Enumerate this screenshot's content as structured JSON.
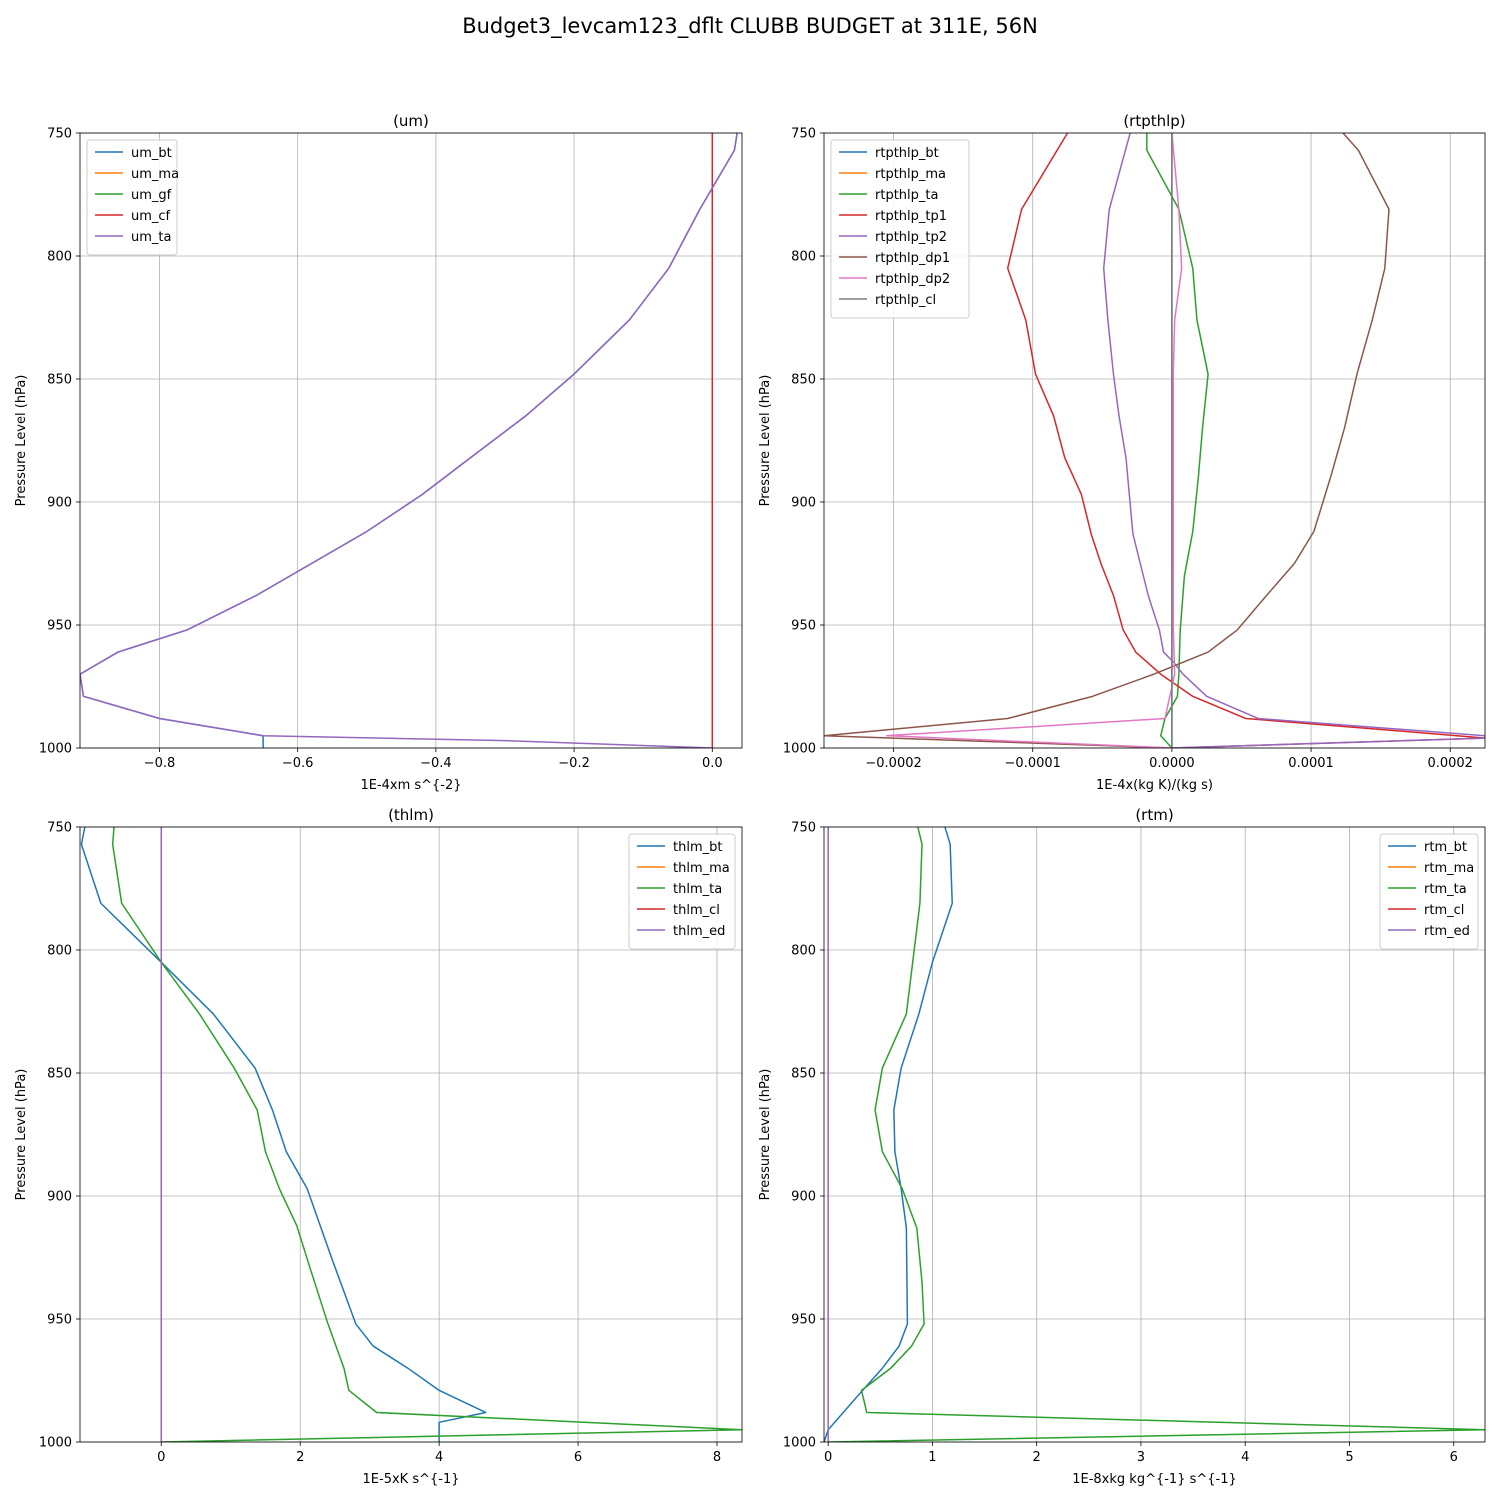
{
  "figure": {
    "title": "Budget3_levcam123_dflt CLUBB BUDGET at 311E, 56N"
  },
  "chart_data": [
    {
      "type": "line",
      "title": "(um)",
      "xlabel": "1E-4xm s^{-2}",
      "ylabel": "Pressure Level (hPa)",
      "xlim": [
        -0.915,
        0.043
      ],
      "ylim": [
        1000,
        750
      ],
      "xticks": [
        -0.8,
        -0.6,
        -0.4,
        -0.2,
        0.0
      ],
      "xtick_labels": [
        "−0.8",
        "−0.6",
        "−0.4",
        "−0.2",
        "0.0"
      ],
      "yticks": [
        750,
        800,
        850,
        900,
        950,
        1000
      ],
      "ytick_labels": [
        "750",
        "800",
        "850",
        "900",
        "950",
        "1000"
      ],
      "grid": true,
      "legend": "upper left",
      "series": [
        {
          "name": "um_bt",
          "color": "#1f77b4",
          "points": [
            [
              0.036,
              750
            ],
            [
              0.032,
              757
            ],
            [
              -0.018,
              781
            ],
            [
              -0.063,
              805
            ],
            [
              -0.12,
              826
            ],
            [
              -0.2,
              848
            ],
            [
              -0.27,
              865
            ],
            [
              -0.35,
              882
            ],
            [
              -0.42,
              897
            ],
            [
              -0.5,
              912
            ],
            [
              -0.58,
              925
            ],
            [
              -0.66,
              938
            ],
            [
              -0.76,
              952
            ],
            [
              -0.86,
              961
            ],
            [
              -0.915,
              970
            ],
            [
              -0.91,
              979
            ],
            [
              -0.8,
              988
            ],
            [
              -0.65,
              995
            ],
            [
              -0.65,
              1000
            ]
          ]
        },
        {
          "name": "um_ma",
          "color": "#ff7f0e",
          "points": []
        },
        {
          "name": "um_gf",
          "color": "#2ca02c",
          "points": []
        },
        {
          "name": "um_cf",
          "color": "#d62728",
          "points": [
            [
              0.0,
              750
            ],
            [
              0.0,
              1000
            ]
          ]
        },
        {
          "name": "um_ta",
          "color": "#9467bd",
          "points": [
            [
              0.036,
              750
            ],
            [
              0.032,
              757
            ],
            [
              -0.018,
              781
            ],
            [
              -0.063,
              805
            ],
            [
              -0.12,
              826
            ],
            [
              -0.2,
              848
            ],
            [
              -0.27,
              865
            ],
            [
              -0.35,
              882
            ],
            [
              -0.42,
              897
            ],
            [
              -0.5,
              912
            ],
            [
              -0.58,
              925
            ],
            [
              -0.66,
              938
            ],
            [
              -0.76,
              952
            ],
            [
              -0.86,
              961
            ],
            [
              -0.915,
              970
            ],
            [
              -0.91,
              979
            ],
            [
              -0.8,
              988
            ],
            [
              -0.65,
              995
            ],
            [
              -0.3,
              997
            ],
            [
              0.0,
              1000
            ]
          ]
        }
      ]
    },
    {
      "type": "line",
      "title": "(rtpthlp)",
      "xlabel": "1E-4x(kg K)/(kg s)",
      "ylabel": "Pressure Level (hPa)",
      "xlim": [
        -0.00025,
        0.000225
      ],
      "ylim": [
        1000,
        750
      ],
      "xticks": [
        -0.0002,
        -0.0001,
        0.0,
        0.0001,
        0.0002
      ],
      "xtick_labels": [
        "−0.0002",
        "−0.0001",
        "0.0000",
        "0.0001",
        "0.0002"
      ],
      "yticks": [
        750,
        800,
        850,
        900,
        950,
        1000
      ],
      "ytick_labels": [
        "750",
        "800",
        "850",
        "900",
        "950",
        "1000"
      ],
      "grid": true,
      "legend": "upper left",
      "series": [
        {
          "name": "rtpthlp_bt",
          "color": "#1f77b4",
          "points": [
            [
              0.0,
              750
            ],
            [
              0.0,
              1000
            ]
          ]
        },
        {
          "name": "rtpthlp_ma",
          "color": "#ff7f0e",
          "points": []
        },
        {
          "name": "rtpthlp_ta",
          "color": "#2ca02c",
          "points": [
            [
              -1.8e-05,
              750
            ],
            [
              -1.8e-05,
              757
            ],
            [
              5e-06,
              781
            ],
            [
              1.5e-05,
              805
            ],
            [
              1.8e-05,
              826
            ],
            [
              2.6e-05,
              848
            ],
            [
              2.2e-05,
              870
            ],
            [
              1.9e-05,
              890
            ],
            [
              1.5e-05,
              912
            ],
            [
              9e-06,
              930
            ],
            [
              6e-06,
              952
            ],
            [
              5e-06,
              970
            ],
            [
              4e-06,
              979
            ],
            [
              -5e-06,
              988
            ],
            [
              -8e-06,
              995
            ],
            [
              0.0,
              1000
            ]
          ]
        },
        {
          "name": "rtpthlp_tp1",
          "color": "#d62728",
          "points": [
            [
              -7.5e-05,
              750
            ],
            [
              -0.000108,
              781
            ],
            [
              -0.000118,
              805
            ],
            [
              -0.000105,
              826
            ],
            [
              -9.8e-05,
              848
            ],
            [
              -8.5e-05,
              865
            ],
            [
              -7.7e-05,
              882
            ],
            [
              -6.5e-05,
              897
            ],
            [
              -5.8e-05,
              913
            ],
            [
              -5.1e-05,
              925
            ],
            [
              -4.2e-05,
              938
            ],
            [
              -3.5e-05,
              952
            ],
            [
              -2.6e-05,
              961
            ],
            [
              -8e-06,
              970
            ],
            [
              1.5e-05,
              979
            ],
            [
              5.3e-05,
              988
            ],
            [
              0.000205,
              995
            ],
            [
              0.000225,
              996
            ],
            [
              0.0,
              1000
            ]
          ]
        },
        {
          "name": "rtpthlp_tp2",
          "color": "#9467bd",
          "points": [
            [
              -3e-05,
              750
            ],
            [
              -4.5e-05,
              781
            ],
            [
              -4.9e-05,
              805
            ],
            [
              -4.6e-05,
              826
            ],
            [
              -4.2e-05,
              848
            ],
            [
              -3.8e-05,
              865
            ],
            [
              -3.3e-05,
              882
            ],
            [
              -2.8e-05,
              913
            ],
            [
              -1.7e-05,
              938
            ],
            [
              -9e-06,
              952
            ],
            [
              -6e-06,
              961
            ],
            [
              1e-06,
              965
            ],
            [
              8e-06,
              970
            ],
            [
              2.5e-05,
              979
            ],
            [
              6.2e-05,
              988
            ],
            [
              0.000225,
              995
            ],
            [
              0.000225,
              996
            ],
            [
              0.0,
              1000
            ]
          ]
        },
        {
          "name": "rtpthlp_dp1",
          "color": "#8c564b",
          "points": [
            [
              0.000123,
              750
            ],
            [
              0.000134,
              757
            ],
            [
              0.000156,
              781
            ],
            [
              0.000153,
              805
            ],
            [
              0.000144,
              826
            ],
            [
              0.000133,
              848
            ],
            [
              0.000124,
              870
            ],
            [
              0.000114,
              890
            ],
            [
              0.000102,
              912
            ],
            [
              8.8e-05,
              925
            ],
            [
              6.8e-05,
              938
            ],
            [
              4.7e-05,
              952
            ],
            [
              2.6e-05,
              961
            ],
            [
              -1.3e-05,
              970
            ],
            [
              -5.7e-05,
              979
            ],
            [
              -0.000118,
              988
            ],
            [
              -0.00025,
              995
            ],
            [
              0.0,
              1000
            ]
          ]
        },
        {
          "name": "rtpthlp_dp2",
          "color": "#e377c2",
          "points": [
            [
              0.0,
              750
            ],
            [
              5e-06,
              781
            ],
            [
              7e-06,
              805
            ],
            [
              2e-06,
              826
            ],
            [
              1e-06,
              848
            ],
            [
              1e-06,
              900
            ],
            [
              1e-06,
              952
            ],
            [
              2e-06,
              970
            ],
            [
              -5e-06,
              988
            ],
            [
              -0.000205,
              995
            ],
            [
              0.0,
              1000
            ]
          ]
        },
        {
          "name": "rtpthlp_cl",
          "color": "#7f7f7f",
          "points": [
            [
              0.0,
              750
            ],
            [
              0.0,
              1000
            ]
          ]
        }
      ]
    },
    {
      "type": "line",
      "title": "(thlm)",
      "xlabel": "1E-5xK s^{-1}",
      "ylabel": "Pressure Level (hPa)",
      "xlim": [
        -1.17,
        8.36
      ],
      "ylim": [
        1000,
        750
      ],
      "xticks": [
        0,
        2,
        4,
        6,
        8
      ],
      "xtick_labels": [
        "0",
        "2",
        "4",
        "6",
        "8"
      ],
      "yticks": [
        750,
        800,
        850,
        900,
        950,
        1000
      ],
      "ytick_labels": [
        "750",
        "800",
        "850",
        "900",
        "950",
        "1000"
      ],
      "grid": true,
      "legend": "upper right",
      "series": [
        {
          "name": "thlm_bt",
          "color": "#1f77b4",
          "points": [
            [
              -1.1,
              750
            ],
            [
              -1.15,
              757
            ],
            [
              -0.87,
              781
            ],
            [
              0.0,
              805
            ],
            [
              0.75,
              826
            ],
            [
              1.35,
              848
            ],
            [
              1.6,
              865
            ],
            [
              1.8,
              882
            ],
            [
              2.1,
              897
            ],
            [
              2.45,
              925
            ],
            [
              2.8,
              952
            ],
            [
              3.05,
              961
            ],
            [
              3.55,
              970
            ],
            [
              4.0,
              979
            ],
            [
              4.67,
              988
            ],
            [
              4.0,
              992
            ],
            [
              4.0,
              1000
            ]
          ]
        },
        {
          "name": "thlm_ma",
          "color": "#ff7f0e",
          "points": []
        },
        {
          "name": "thlm_ta",
          "color": "#2ca02c",
          "points": [
            [
              -0.68,
              750
            ],
            [
              -0.7,
              757
            ],
            [
              -0.57,
              781
            ],
            [
              0.0,
              805
            ],
            [
              0.55,
              826
            ],
            [
              1.05,
              848
            ],
            [
              1.38,
              865
            ],
            [
              1.5,
              882
            ],
            [
              1.7,
              897
            ],
            [
              1.95,
              912
            ],
            [
              2.15,
              930
            ],
            [
              2.4,
              952
            ],
            [
              2.63,
              970
            ],
            [
              2.7,
              979
            ],
            [
              3.1,
              988
            ],
            [
              8.36,
              995
            ],
            [
              0.0,
              1000
            ]
          ]
        },
        {
          "name": "thlm_cl",
          "color": "#d62728",
          "points": []
        },
        {
          "name": "thlm_ed",
          "color": "#9467bd",
          "points": [
            [
              0.0,
              750
            ],
            [
              0.0,
              1000
            ]
          ]
        }
      ]
    },
    {
      "type": "line",
      "title": "(rtm)",
      "xlabel": "1E-8xkg kg^{-1} s^{-1}",
      "ylabel": "Pressure Level (hPa)",
      "xlim": [
        -0.04,
        6.3
      ],
      "ylim": [
        1000,
        750
      ],
      "xticks": [
        0,
        1,
        2,
        3,
        4,
        5,
        6
      ],
      "xtick_labels": [
        "0",
        "1",
        "2",
        "3",
        "4",
        "5",
        "6"
      ],
      "yticks": [
        750,
        800,
        850,
        900,
        950,
        1000
      ],
      "ytick_labels": [
        "750",
        "800",
        "850",
        "900",
        "950",
        "1000"
      ],
      "grid": true,
      "legend": "upper right",
      "series": [
        {
          "name": "rtm_bt",
          "color": "#1f77b4",
          "points": [
            [
              1.12,
              750
            ],
            [
              1.17,
              757
            ],
            [
              1.19,
              781
            ],
            [
              1.0,
              805
            ],
            [
              0.87,
              826
            ],
            [
              0.7,
              848
            ],
            [
              0.63,
              865
            ],
            [
              0.64,
              882
            ],
            [
              0.7,
              897
            ],
            [
              0.75,
              913
            ],
            [
              0.76,
              952
            ],
            [
              0.68,
              961
            ],
            [
              0.52,
              970
            ],
            [
              0.33,
              979
            ],
            [
              0.0,
              995
            ],
            [
              -0.04,
              1000
            ]
          ]
        },
        {
          "name": "rtm_ma",
          "color": "#ff7f0e",
          "points": []
        },
        {
          "name": "rtm_ta",
          "color": "#2ca02c",
          "points": [
            [
              0.86,
              750
            ],
            [
              0.9,
              757
            ],
            [
              0.88,
              781
            ],
            [
              0.75,
              826
            ],
            [
              0.52,
              848
            ],
            [
              0.45,
              865
            ],
            [
              0.52,
              882
            ],
            [
              0.71,
              897
            ],
            [
              0.85,
              913
            ],
            [
              0.9,
              935
            ],
            [
              0.92,
              952
            ],
            [
              0.8,
              961
            ],
            [
              0.6,
              970
            ],
            [
              0.32,
              979
            ],
            [
              0.37,
              988
            ],
            [
              6.3,
              995
            ],
            [
              0.0,
              1000
            ]
          ]
        },
        {
          "name": "rtm_cl",
          "color": "#d62728",
          "points": []
        },
        {
          "name": "rtm_ed",
          "color": "#9467bd",
          "points": [
            [
              0.0,
              750
            ],
            [
              0.0,
              1000
            ]
          ]
        }
      ]
    }
  ]
}
